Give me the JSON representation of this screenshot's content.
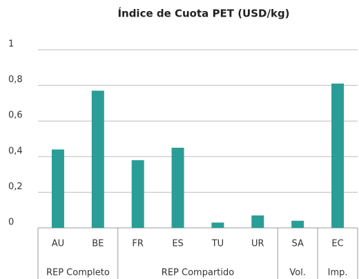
{
  "chart_data": {
    "type": "bar",
    "title": "Índice de Cuota PET (USD/kg)",
    "categories": [
      "AU",
      "BE",
      "FR",
      "ES",
      "TU",
      "UR",
      "SA",
      "EC"
    ],
    "groups": [
      {
        "name": "REP Completo",
        "span": 2
      },
      {
        "name": "REP Compartido",
        "span": 4
      },
      {
        "name": "Vol.",
        "span": 1
      },
      {
        "name": "Imp.",
        "span": 1
      }
    ],
    "values": [
      0.44,
      0.77,
      0.38,
      0.45,
      0.03,
      0.07,
      0.04,
      0.81
    ],
    "color": "#2a9d96",
    "ylim": [
      0,
      1
    ],
    "yticks": [
      0,
      {
        "value": 0.2,
        "label": "0,2"
      },
      {
        "value": 0.4,
        "label": "0,4"
      },
      {
        "value": 0.6,
        "label": "0,6"
      },
      {
        "value": 0.8,
        "label": "0,8"
      },
      1
    ],
    "grid": true
  }
}
